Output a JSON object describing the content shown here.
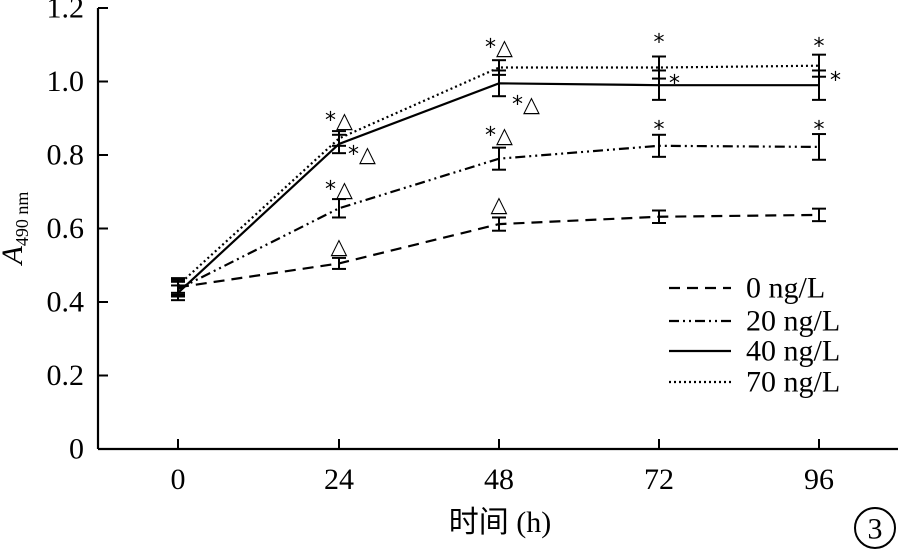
{
  "chart_data": {
    "type": "line",
    "title": "",
    "xlabel": "时间 (h)",
    "ylabel_main": "A",
    "ylabel_sub": "490 nm",
    "x": [
      0,
      24,
      48,
      72,
      96
    ],
    "x_ticks": [
      "0",
      "24",
      "48",
      "72",
      "96"
    ],
    "y_ticks": [
      "0",
      "0.2",
      "0.4",
      "0.6",
      "0.8",
      "1.0",
      "1.2"
    ],
    "ylim": [
      0,
      1.2
    ],
    "legend_position": "lower-right",
    "panel_label": "3",
    "series": [
      {
        "name": "0 ng/L",
        "style": "dashed",
        "values": [
          0.44,
          0.505,
          0.612,
          0.632,
          0.637
        ],
        "errors": [
          0.02,
          0.015,
          0.018,
          0.017,
          0.017
        ],
        "marks": [
          "",
          "△",
          "△",
          "",
          ""
        ]
      },
      {
        "name": "20 ng/L",
        "style": "dash-dot-dot",
        "values": [
          0.435,
          0.655,
          0.79,
          0.825,
          0.822
        ],
        "errors": [
          0.02,
          0.025,
          0.03,
          0.03,
          0.035
        ],
        "marks": [
          "",
          "*△",
          "*△",
          "*",
          "*"
        ]
      },
      {
        "name": "40 ng/L",
        "style": "solid",
        "values": [
          0.425,
          0.83,
          0.995,
          0.99,
          0.99
        ],
        "errors": [
          0.02,
          0.025,
          0.035,
          0.04,
          0.04
        ],
        "marks": [
          "",
          "*△",
          "*△",
          "*",
          "*"
        ]
      },
      {
        "name": "70 ng/L",
        "style": "dotted",
        "values": [
          0.445,
          0.845,
          1.038,
          1.038,
          1.043
        ],
        "errors": [
          0.02,
          0.02,
          0.02,
          0.03,
          0.03
        ],
        "marks": [
          "",
          "*△",
          "*△",
          "*",
          "*"
        ]
      }
    ]
  }
}
